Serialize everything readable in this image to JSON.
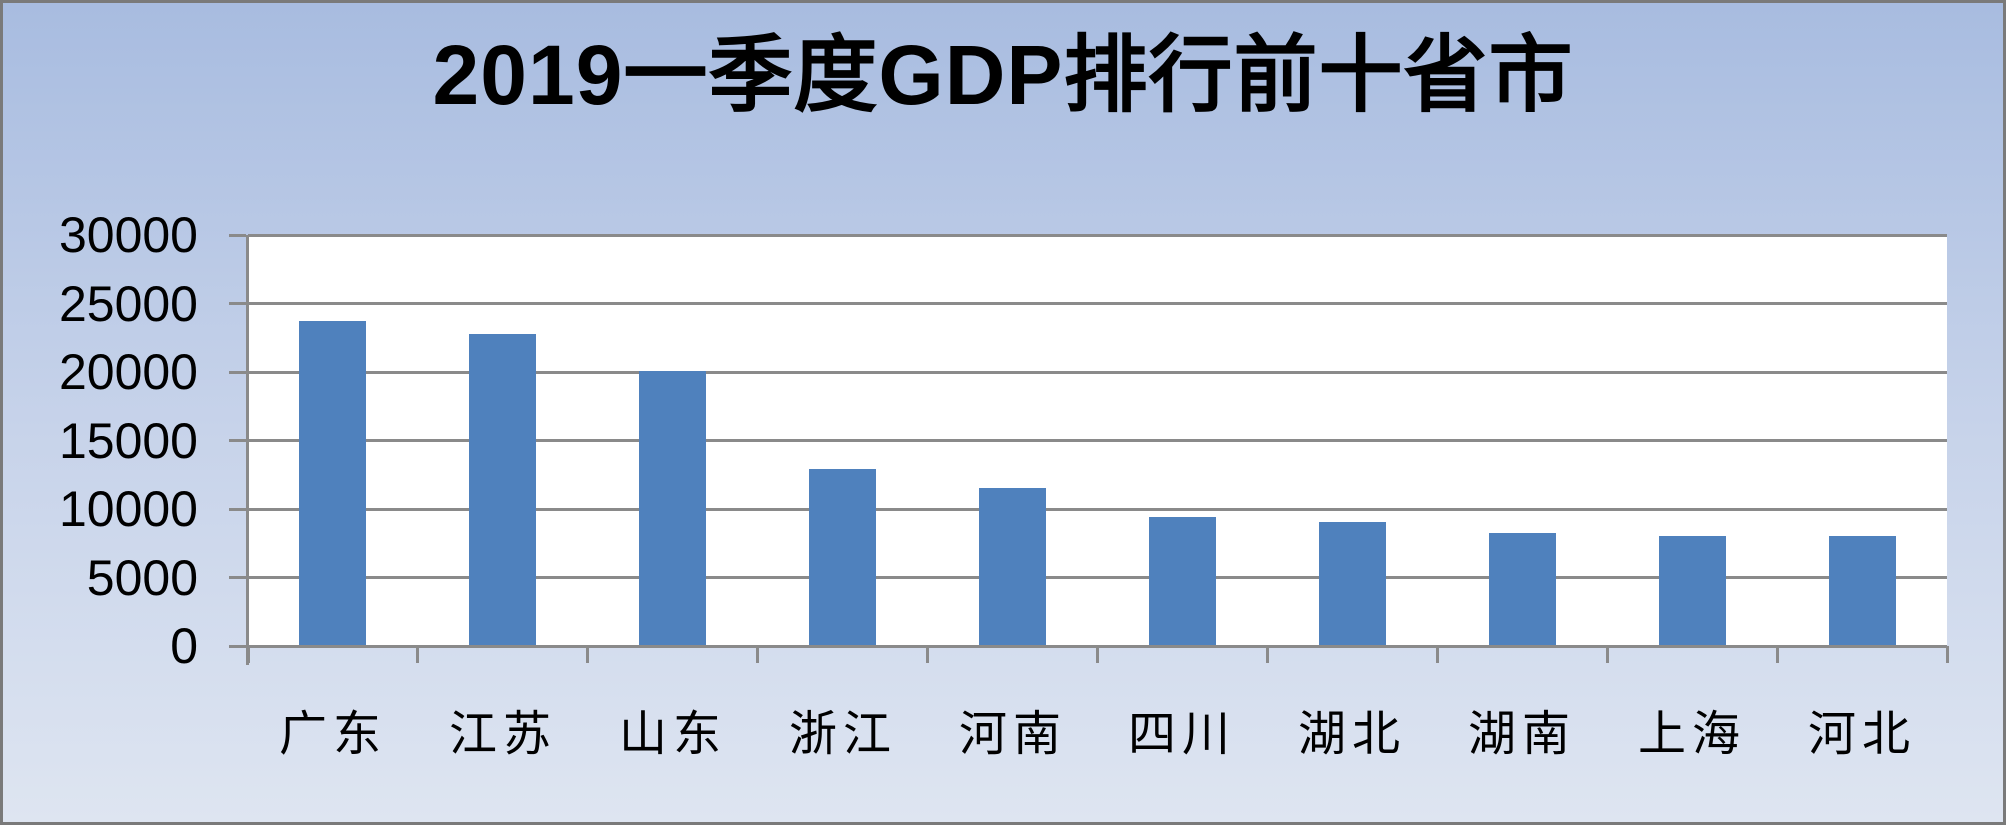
{
  "title": "2019一季度GDP排行前十省市",
  "chart_data": {
    "type": "bar",
    "title": "2019一季度GDP排行前十省市",
    "categories": [
      "广东",
      "江苏",
      "山东",
      "浙江",
      "河南",
      "四川",
      "湖北",
      "湖南",
      "上海",
      "河北"
    ],
    "values": [
      23700,
      22800,
      20050,
      12950,
      11550,
      9400,
      9050,
      8250,
      8050,
      8050
    ],
    "xlabel": "",
    "ylabel": "",
    "ylim": [
      0,
      30000
    ],
    "yticks": [
      0,
      5000,
      10000,
      15000,
      20000,
      25000,
      30000
    ],
    "grid": true,
    "legend": false,
    "colors": {
      "bar": "#4F81BD",
      "gridline": "#8a8a8a",
      "axis": "#8a8a8a",
      "plot_background": "#ffffff",
      "background_top": "#a8bce0",
      "background_bottom": "#dee5f1",
      "text": "#000000",
      "frame_border": "#7a7a7a"
    }
  }
}
